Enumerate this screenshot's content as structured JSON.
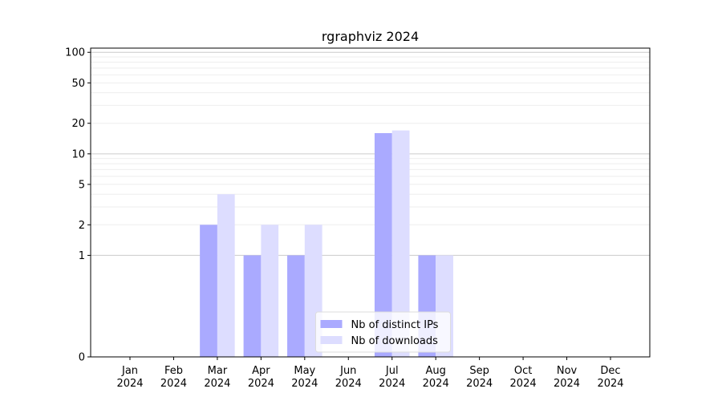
{
  "chart_data": {
    "type": "bar",
    "title": "rgraphviz 2024",
    "xlabel": "",
    "ylabel": "",
    "yscale": "symlog",
    "ylim": [
      0,
      110
    ],
    "yticks": [
      0,
      1,
      2,
      5,
      10,
      20,
      50,
      100
    ],
    "ytick_labels": [
      "0",
      "1",
      "2",
      "5",
      "10",
      "20",
      "50",
      "100"
    ],
    "categories": [
      {
        "month": "Jan",
        "year": "2024"
      },
      {
        "month": "Feb",
        "year": "2024"
      },
      {
        "month": "Mar",
        "year": "2024"
      },
      {
        "month": "Apr",
        "year": "2024"
      },
      {
        "month": "May",
        "year": "2024"
      },
      {
        "month": "Jun",
        "year": "2024"
      },
      {
        "month": "Jul",
        "year": "2024"
      },
      {
        "month": "Aug",
        "year": "2024"
      },
      {
        "month": "Sep",
        "year": "2024"
      },
      {
        "month": "Oct",
        "year": "2024"
      },
      {
        "month": "Nov",
        "year": "2024"
      },
      {
        "month": "Dec",
        "year": "2024"
      }
    ],
    "series": [
      {
        "name": "Nb of distinct IPs",
        "color": "#aaaaff",
        "values": [
          0,
          0,
          2,
          1,
          1,
          0,
          16,
          1,
          0,
          0,
          0,
          0
        ]
      },
      {
        "name": "Nb of downloads",
        "color": "#ddddff",
        "values": [
          0,
          0,
          4,
          2,
          2,
          0,
          17,
          1,
          0,
          0,
          0,
          0
        ]
      }
    ],
    "grid": true,
    "legend_position": "lower-center"
  }
}
